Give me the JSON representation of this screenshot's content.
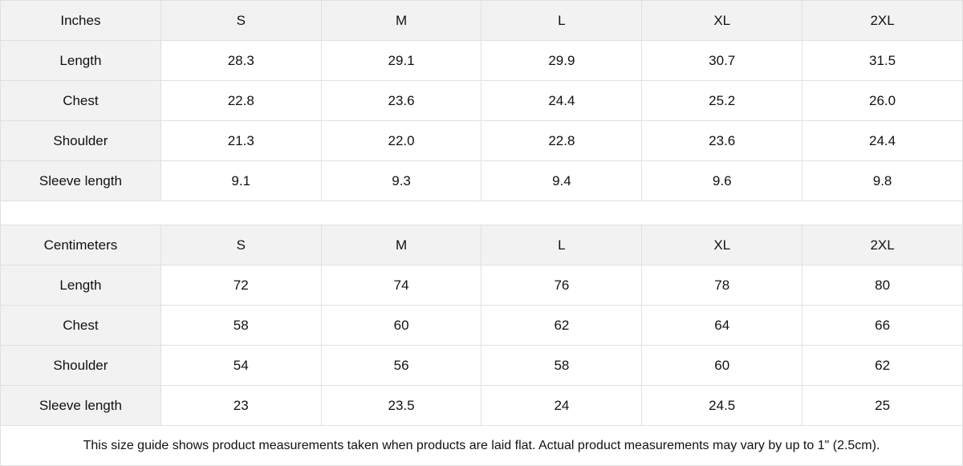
{
  "inches": {
    "header": [
      "Inches",
      "S",
      "M",
      "L",
      "XL",
      "2XL"
    ],
    "rows": [
      [
        "Length",
        "28.3",
        "29.1",
        "29.9",
        "30.7",
        "31.5"
      ],
      [
        "Chest",
        "22.8",
        "23.6",
        "24.4",
        "25.2",
        "26.0"
      ],
      [
        "Shoulder",
        "21.3",
        "22.0",
        "22.8",
        "23.6",
        "24.4"
      ],
      [
        "Sleeve length",
        "9.1",
        "9.3",
        "9.4",
        "9.6",
        "9.8"
      ]
    ]
  },
  "centimeters": {
    "header": [
      "Centimeters",
      "S",
      "M",
      "L",
      "XL",
      "2XL"
    ],
    "rows": [
      [
        "Length",
        "72",
        "74",
        "76",
        "78",
        "80"
      ],
      [
        "Chest",
        "58",
        "60",
        "62",
        "64",
        "66"
      ],
      [
        "Shoulder",
        "54",
        "56",
        "58",
        "60",
        "62"
      ],
      [
        "Sleeve length",
        "23",
        "23.5",
        "24",
        "24.5",
        "25"
      ]
    ]
  },
  "footer_note": "This size guide shows product measurements taken when products are laid flat.  Actual product measurements may vary by up to 1\" (2.5cm)."
}
